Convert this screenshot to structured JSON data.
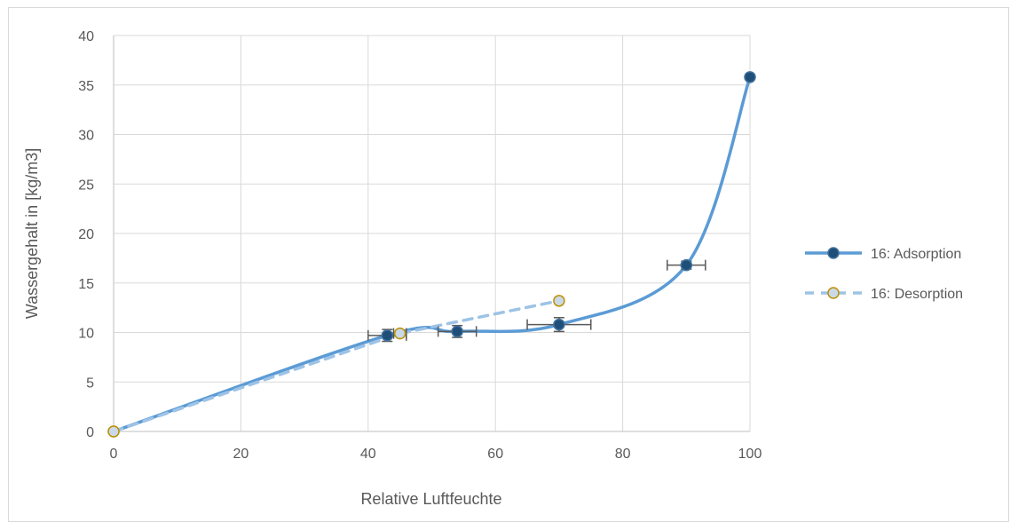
{
  "chart_data": {
    "type": "scatter",
    "title": "",
    "xlabel": "Relative Luftfeuchte",
    "ylabel": "Wassergehalt in [kg/m3]",
    "xlim": [
      0,
      100
    ],
    "ylim": [
      0,
      40
    ],
    "x_ticks": [
      0,
      20,
      40,
      60,
      80,
      100
    ],
    "y_ticks": [
      0,
      5,
      10,
      15,
      20,
      25,
      30,
      35,
      40
    ],
    "grid": "vertical-and-horizontal",
    "legend_position": "right",
    "series": [
      {
        "name": "16: Adsorption",
        "line_color": "#5b9bd5",
        "marker_fill": "#1f4e79",
        "marker_edge": "#41719c",
        "line_style": "solid-smooth",
        "points": [
          {
            "x": 0,
            "y": 0,
            "marker_fill": "#c9d9e8",
            "marker_edge": "#a5a5a5"
          },
          {
            "x": 43,
            "y": 9.7,
            "xerr": 3,
            "yerr": 0.6
          },
          {
            "x": 54,
            "y": 10.1,
            "xerr": 3,
            "yerr": 0.6
          },
          {
            "x": 70,
            "y": 10.8,
            "xerr": 5,
            "yerr": 0.7
          },
          {
            "x": 90,
            "y": 16.8,
            "xerr": 3,
            "yerr": 0.4
          },
          {
            "x": 100,
            "y": 35.8
          }
        ]
      },
      {
        "name": "16: Desorption",
        "line_color": "#9dc3e6",
        "marker_fill": "#c9d9e8",
        "marker_edge": "#bf9000",
        "line_style": "dashed",
        "points": [
          {
            "x": 0,
            "y": 0
          },
          {
            "x": 45,
            "y": 9.9,
            "xerr": 1,
            "yerr": 0
          },
          {
            "x": 70,
            "y": 13.2
          }
        ]
      }
    ]
  }
}
